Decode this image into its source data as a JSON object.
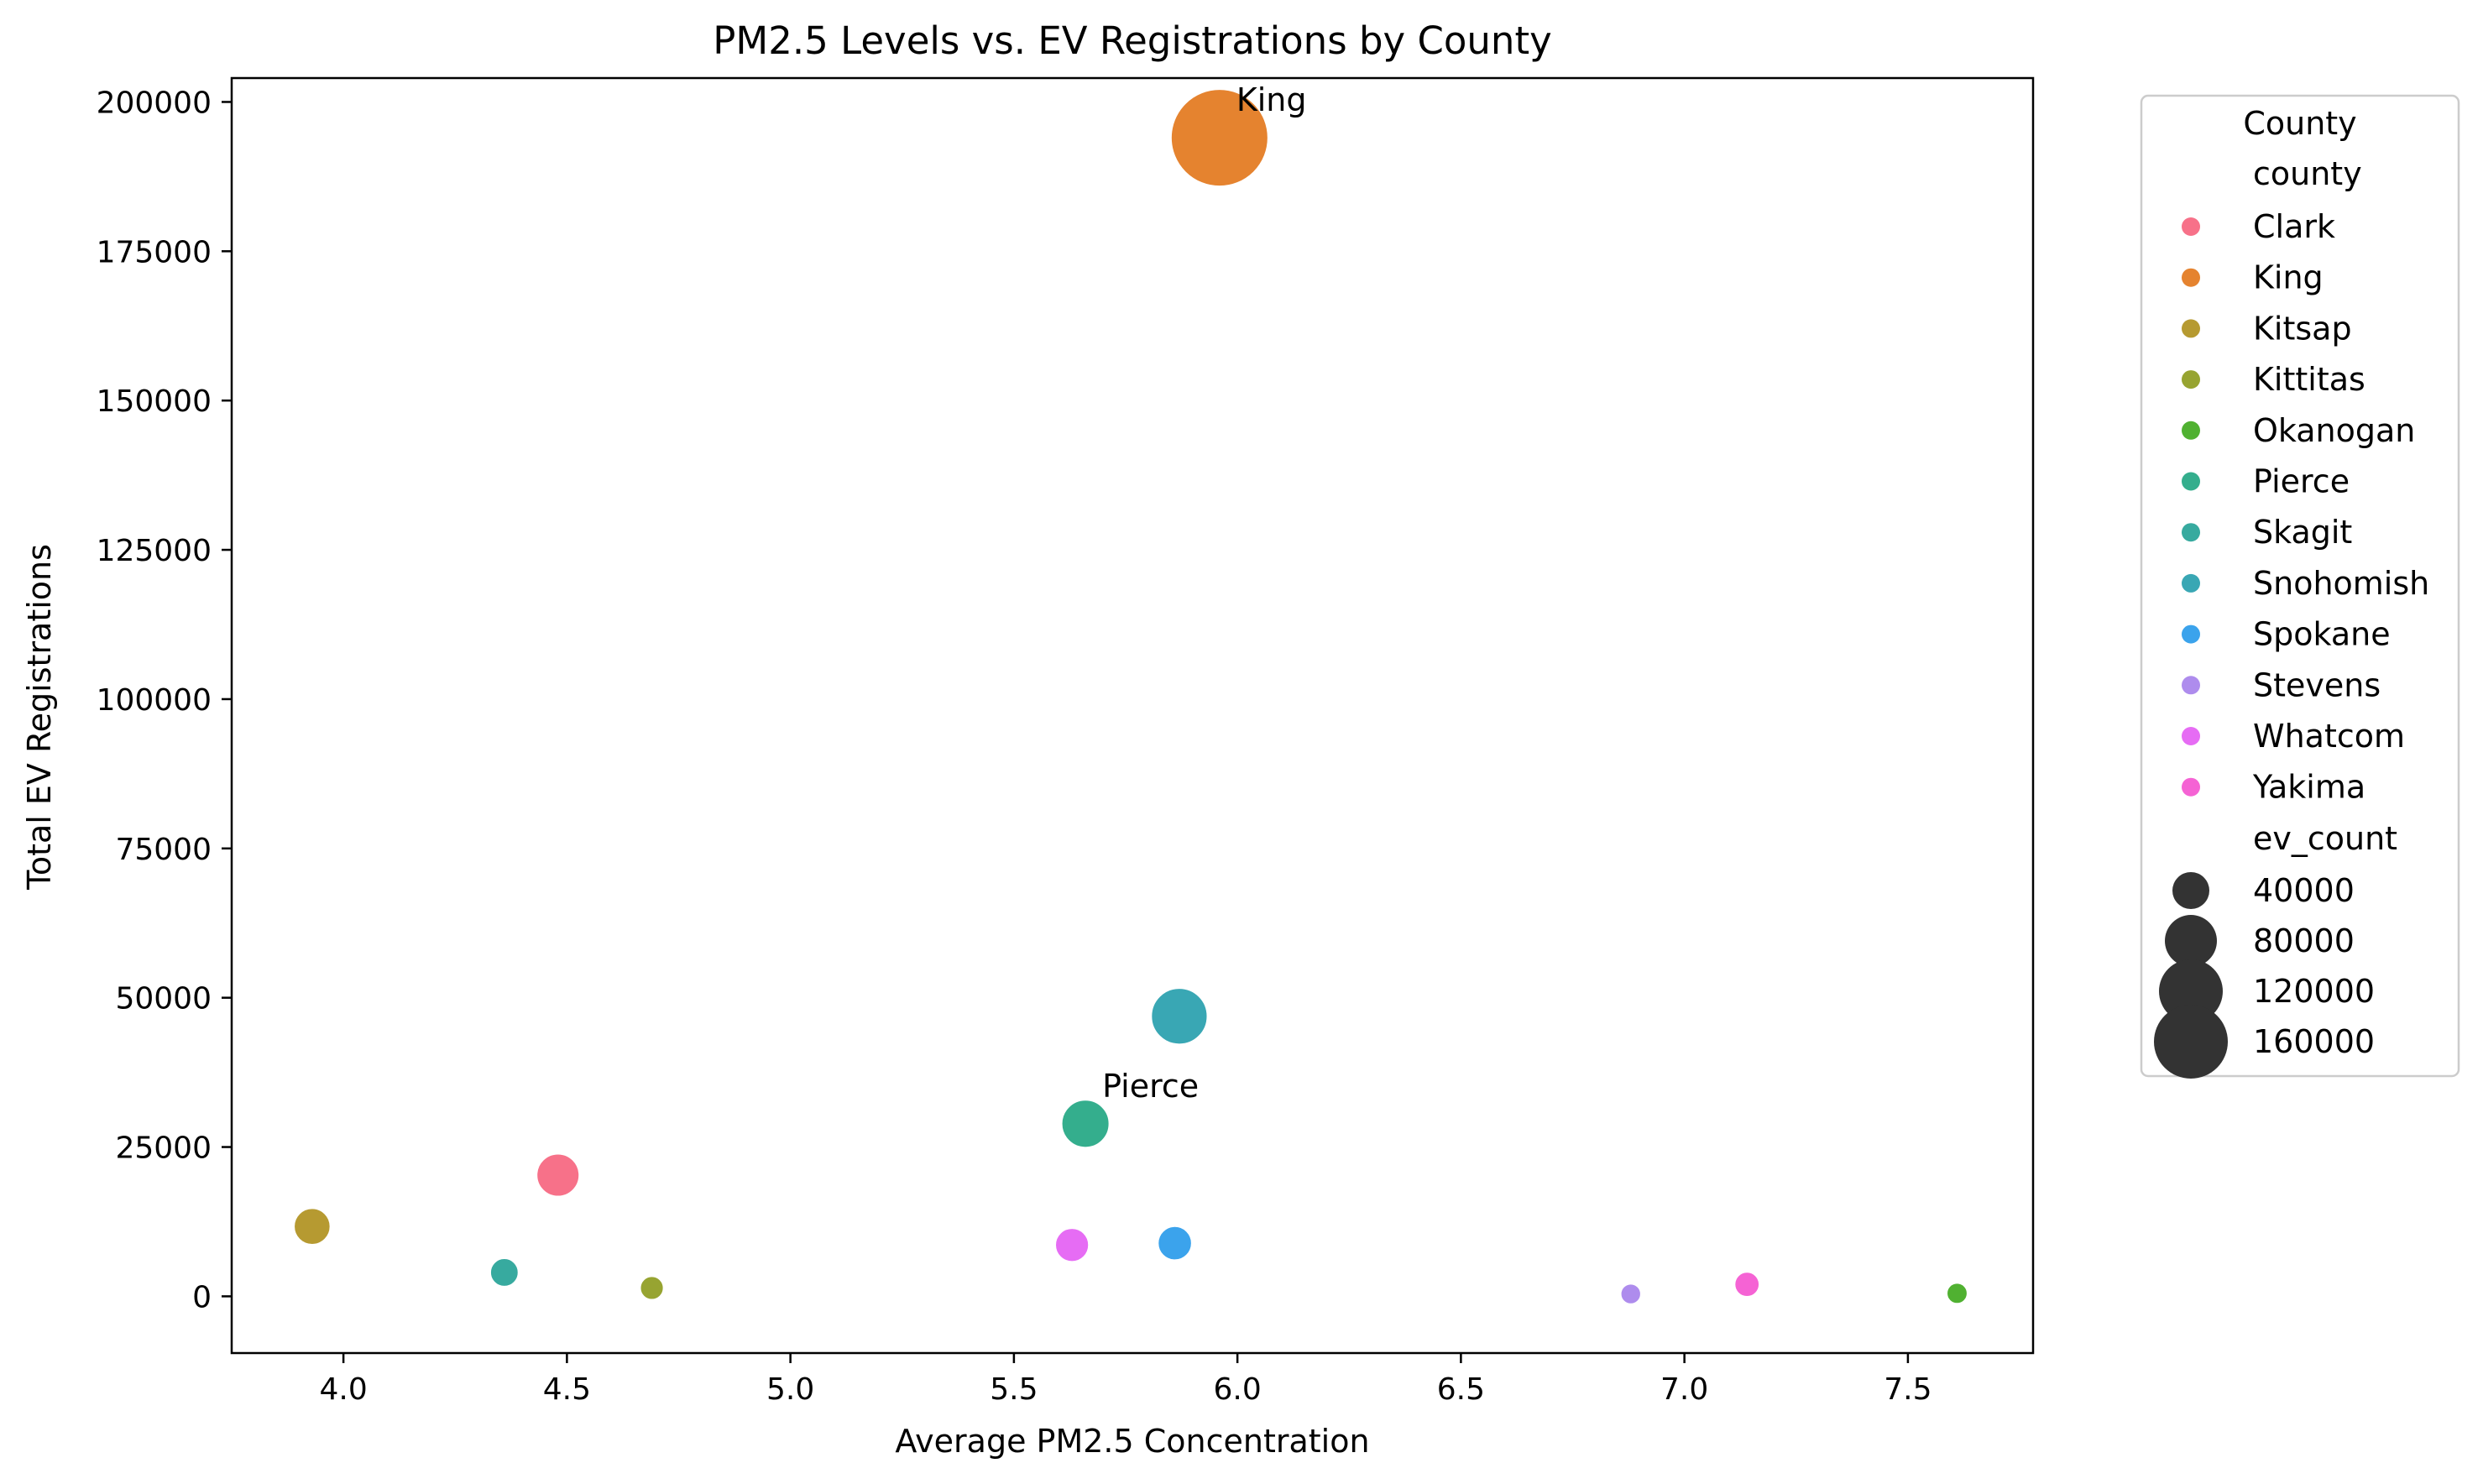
{
  "chart_data": {
    "type": "scatter",
    "title": "PM2.5 Levels vs. EV Registrations by County",
    "xlabel": "Average PM2.5 Concentration",
    "ylabel": "Total EV Registrations",
    "xlim": [
      3.75,
      7.78
    ],
    "ylim": [
      -9500,
      204000
    ],
    "xticks": [
      4.0,
      4.5,
      5.0,
      5.5,
      6.0,
      6.5,
      7.0,
      7.5
    ],
    "xtick_labels": [
      "4.0",
      "4.5",
      "5.0",
      "5.5",
      "6.0",
      "6.5",
      "7.0",
      "7.5"
    ],
    "yticks": [
      0,
      25000,
      50000,
      75000,
      100000,
      125000,
      150000,
      175000,
      200000
    ],
    "ytick_labels": [
      "0",
      "25000",
      "50000",
      "75000",
      "100000",
      "125000",
      "150000",
      "175000",
      "200000"
    ],
    "grid": false,
    "legend_position": "outside-right",
    "legend": {
      "title": "County",
      "hue_title": "county",
      "size_title": "ev_count",
      "size_entries": [
        {
          "label": "40000",
          "value": 40000
        },
        {
          "label": "80000",
          "value": 80000
        },
        {
          "label": "120000",
          "value": 120000
        },
        {
          "label": "160000",
          "value": 160000
        }
      ]
    },
    "points": [
      {
        "county": "Clark",
        "x": 4.48,
        "y": 20300,
        "color": "#f77189"
      },
      {
        "county": "King",
        "x": 5.96,
        "y": 194000,
        "color": "#e5832f"
      },
      {
        "county": "Kitsap",
        "x": 3.93,
        "y": 11700,
        "color": "#b69a31"
      },
      {
        "county": "Kittitas",
        "x": 4.69,
        "y": 1400,
        "color": "#97a431"
      },
      {
        "county": "Okanogan",
        "x": 7.61,
        "y": 500,
        "color": "#50b131"
      },
      {
        "county": "Pierce",
        "x": 5.66,
        "y": 28900,
        "color": "#34ae8d"
      },
      {
        "county": "Skagit",
        "x": 4.36,
        "y": 4000,
        "color": "#37aa9f"
      },
      {
        "county": "Snohomish",
        "x": 5.87,
        "y": 46900,
        "color": "#39a7b4"
      },
      {
        "county": "Spokane",
        "x": 5.86,
        "y": 8900,
        "color": "#3ba3ec"
      },
      {
        "county": "Stevens",
        "x": 6.88,
        "y": 400,
        "color": "#ae8ced"
      },
      {
        "county": "Whatcom",
        "x": 5.63,
        "y": 8600,
        "color": "#e66cf4"
      },
      {
        "county": "Yakima",
        "x": 7.14,
        "y": 2000,
        "color": "#f563d4"
      }
    ],
    "annotations": [
      {
        "text": "King",
        "x": 5.96,
        "y": 194000
      },
      {
        "text": "Pierce",
        "x": 5.66,
        "y": 28900
      }
    ]
  }
}
